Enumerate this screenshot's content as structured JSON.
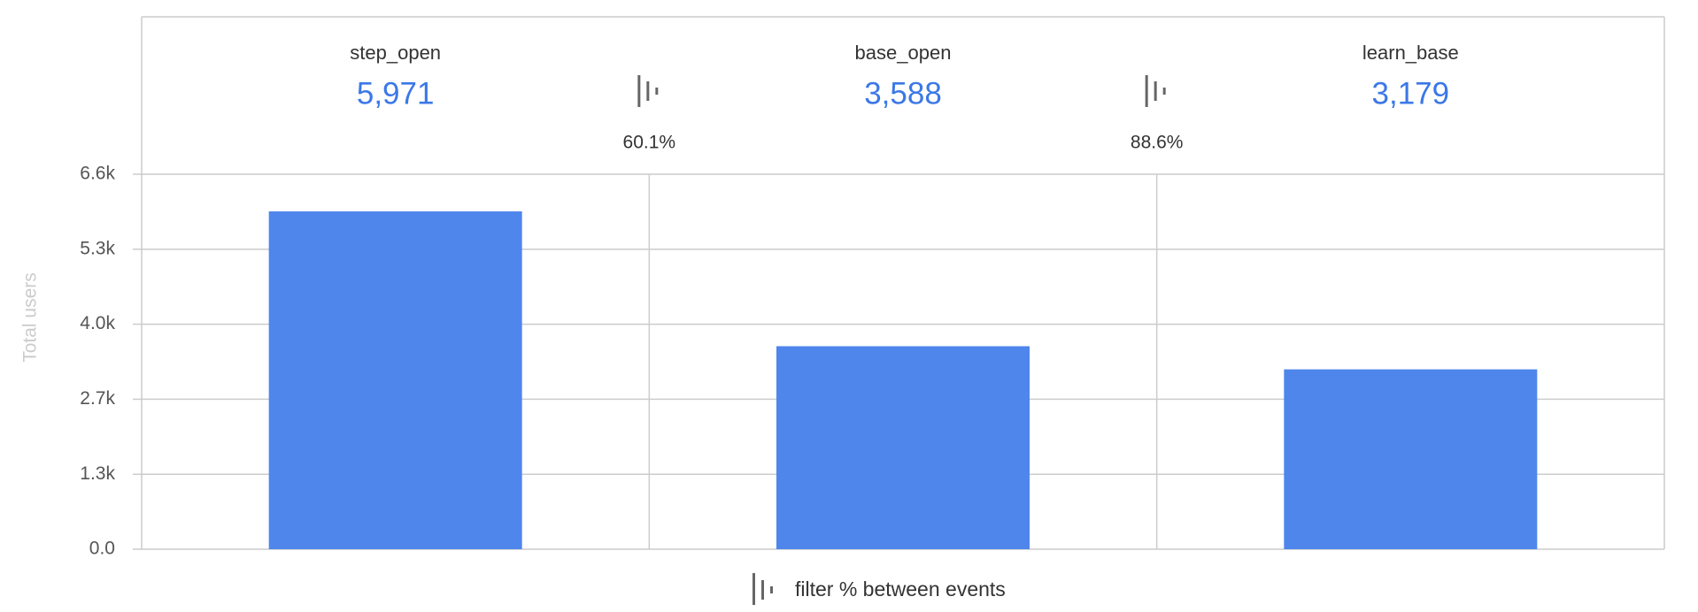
{
  "chart_data": {
    "type": "bar",
    "categories": [
      "step_open",
      "base_open",
      "learn_base"
    ],
    "values": [
      5971,
      3588,
      3179
    ],
    "value_labels": [
      "5,971",
      "3,588",
      "3,179"
    ],
    "conversions": [
      {
        "value": 60.1,
        "label": "60.1%"
      },
      {
        "value": 88.6,
        "label": "88.6%"
      }
    ],
    "color": "#4f86ec",
    "ylabel": "Total users",
    "ylim": [
      0,
      6628
    ],
    "yticks": [
      {
        "value": 0,
        "label": "0.0"
      },
      {
        "value": 1325,
        "label": "1.3k"
      },
      {
        "value": 2651,
        "label": "2.7k"
      },
      {
        "value": 3977,
        "label": "4.0k"
      },
      {
        "value": 5302,
        "label": "5.3k"
      },
      {
        "value": 6628,
        "label": "6.6k"
      }
    ],
    "grid": true,
    "legend": "filter % between events"
  }
}
